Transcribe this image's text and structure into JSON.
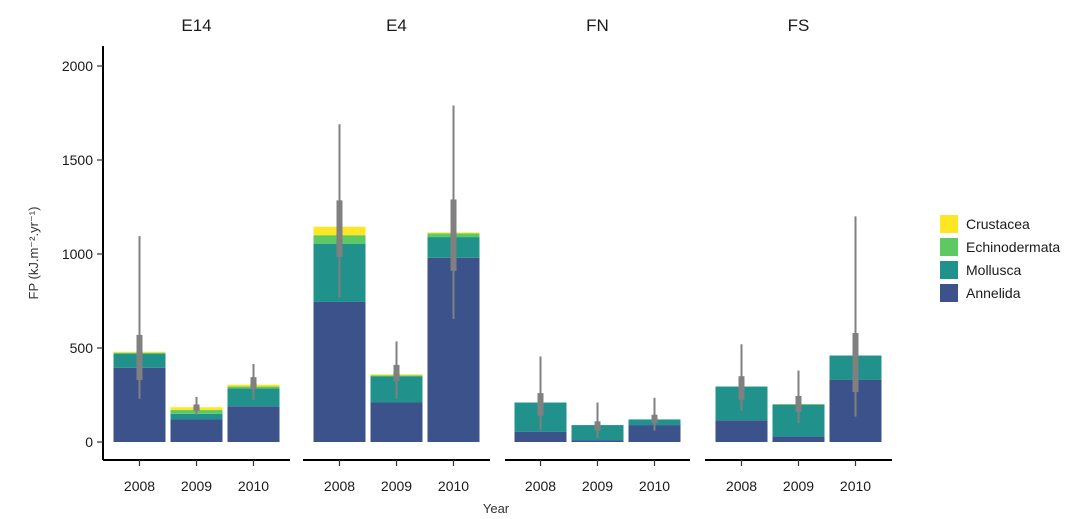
{
  "chart_data": {
    "type": "bar",
    "stacked": true,
    "facets": [
      "E14",
      "E4",
      "FN",
      "FS"
    ],
    "categories": [
      "2008",
      "2009",
      "2010"
    ],
    "xlabel": "Year",
    "ylabel": "FP (kJ.m⁻².yr⁻¹)",
    "ylim": [
      0,
      2000
    ],
    "yticks": [
      0,
      500,
      1000,
      1500,
      2000
    ],
    "legend_position": "right",
    "stack_order": [
      "Annelida",
      "Mollusca",
      "Echinodermata",
      "Crustacea"
    ],
    "legend_order": [
      "Crustacea",
      "Echinodermata",
      "Mollusca",
      "Annelida"
    ],
    "series_colors": {
      "Crustacea": "#FDE725",
      "Echinodermata": "#5EC962",
      "Mollusca": "#21918C",
      "Annelida": "#3B528B"
    },
    "error_color": "#808080",
    "panels": [
      {
        "facet": "E14",
        "bars": [
          {
            "year": "2008",
            "Annelida": 395,
            "Mollusca": 75,
            "Echinodermata": 5,
            "Crustacea": 5,
            "median": 460,
            "q_low": 330,
            "q_high": 570,
            "min": 230,
            "max": 1095
          },
          {
            "year": "2009",
            "Annelida": 120,
            "Mollusca": 30,
            "Echinodermata": 20,
            "Crustacea": 15,
            "median": 180,
            "q_low": 165,
            "q_high": 200,
            "min": 145,
            "max": 240
          },
          {
            "year": "2010",
            "Annelida": 190,
            "Mollusca": 95,
            "Echinodermata": 10,
            "Crustacea": 10,
            "median": 305,
            "q_low": 280,
            "q_high": 345,
            "min": 225,
            "max": 415
          }
        ]
      },
      {
        "facet": "E4",
        "bars": [
          {
            "year": "2008",
            "Annelida": 745,
            "Mollusca": 310,
            "Echinodermata": 45,
            "Crustacea": 45,
            "median": 1100,
            "q_low": 985,
            "q_high": 1285,
            "min": 770,
            "max": 1690
          },
          {
            "year": "2009",
            "Annelida": 210,
            "Mollusca": 140,
            "Echinodermata": 5,
            "Crustacea": 5,
            "median": 360,
            "q_low": 325,
            "q_high": 410,
            "min": 230,
            "max": 535
          },
          {
            "year": "2010",
            "Annelida": 980,
            "Mollusca": 110,
            "Echinodermata": 20,
            "Crustacea": 5,
            "median": 1100,
            "q_low": 910,
            "q_high": 1290,
            "min": 655,
            "max": 1790
          }
        ]
      },
      {
        "facet": "FN",
        "bars": [
          {
            "year": "2008",
            "Annelida": 55,
            "Mollusca": 155,
            "Echinodermata": 0,
            "Crustacea": 0,
            "median": 200,
            "q_low": 140,
            "q_high": 260,
            "min": 65,
            "max": 455
          },
          {
            "year": "2009",
            "Annelida": 10,
            "Mollusca": 80,
            "Echinodermata": 0,
            "Crustacea": 0,
            "median": 85,
            "q_low": 60,
            "q_high": 110,
            "min": 20,
            "max": 210
          },
          {
            "year": "2010",
            "Annelida": 90,
            "Mollusca": 30,
            "Echinodermata": 0,
            "Crustacea": 0,
            "median": 120,
            "q_low": 100,
            "q_high": 145,
            "min": 60,
            "max": 235
          }
        ]
      },
      {
        "facet": "FS",
        "bars": [
          {
            "year": "2008",
            "Annelida": 115,
            "Mollusca": 180,
            "Echinodermata": 0,
            "Crustacea": 0,
            "median": 275,
            "q_low": 225,
            "q_high": 350,
            "min": 165,
            "max": 520
          },
          {
            "year": "2009",
            "Annelida": 30,
            "Mollusca": 170,
            "Echinodermata": 0,
            "Crustacea": 2,
            "median": 200,
            "q_low": 160,
            "q_high": 245,
            "min": 100,
            "max": 380
          },
          {
            "year": "2010",
            "Annelida": 330,
            "Mollusca": 130,
            "Echinodermata": 0,
            "Crustacea": 0,
            "median": 420,
            "q_low": 265,
            "q_high": 580,
            "min": 135,
            "max": 1200
          }
        ]
      }
    ]
  }
}
